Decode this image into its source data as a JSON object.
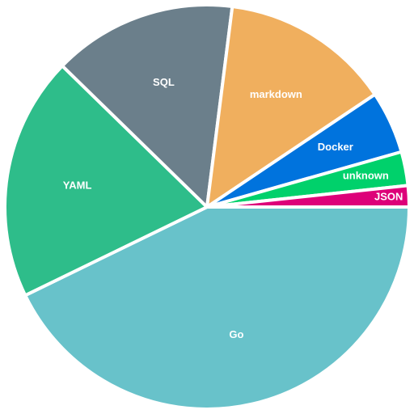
{
  "chart_data": {
    "type": "pie",
    "title": "",
    "slices": [
      {
        "label": "Go",
        "value": 42.8,
        "color": "#68C2CA"
      },
      {
        "label": "YAML",
        "value": 19.5,
        "color": "#2EBD8A"
      },
      {
        "label": "SQL",
        "value": 14.7,
        "color": "#6B7F8B"
      },
      {
        "label": "markdown",
        "value": 13.6,
        "color": "#F0AF5E"
      },
      {
        "label": "Docker",
        "value": 5.0,
        "color": "#0073DD"
      },
      {
        "label": "unknown",
        "value": 2.7,
        "color": "#00D16B"
      },
      {
        "label": "JSON",
        "value": 1.7,
        "color": "#DD0079"
      }
    ]
  }
}
